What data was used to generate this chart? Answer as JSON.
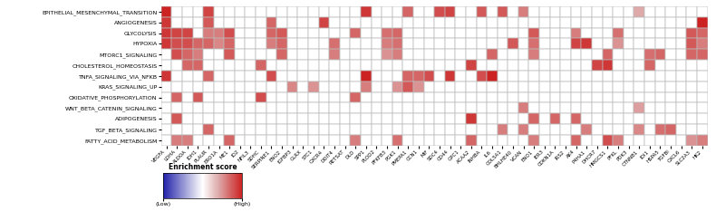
{
  "pathways": [
    "EPITHELIAL_MESENCHYMAL_TRANSITION",
    "ANGIOGENESIS",
    "GLYCOLYSIS",
    "HYPOXIA",
    "MTORC1_SIGNALING",
    "CHOLESTEROL_HOMEOSTASIS",
    "TNFA_SIGNALING_VIA_NFKB",
    "KRAS_SIGNALING_UP",
    "OXIDATIVE_PHOSPHORYLATION",
    "WNT_BETA_CATENIN_SIGNALING",
    "ADIPOGENESIS",
    "TGF_BETA_SIGNALING",
    "FATTY_ACID_METABOLISM"
  ],
  "genes": [
    "VEGFA",
    "LDHA",
    "ALDOA",
    "IDH1",
    "PLAUR",
    "ERO1A",
    "ME1",
    "ID2",
    "NFIL3",
    "SDHC",
    "SERPINE1",
    "ENO2",
    "IGFBP3",
    "GLRX",
    "STC1",
    "CXCR4",
    "DDIT4",
    "RETSAT",
    "DLD",
    "SPP1",
    "PLOD2",
    "PFKFB3",
    "PGK1",
    "PMEPA1",
    "CCN1",
    "MIF",
    "SDC4",
    "CD44",
    "GPC1",
    "ACAA2",
    "INHBA",
    "IL6",
    "COL5A1",
    "BHLHE40",
    "VCAN",
    "ENO1",
    "IER3",
    "CDKN1A",
    "IRS2",
    "AK4",
    "P4HA1",
    "DHCR7",
    "HMGCS1",
    "PFKL",
    "PDK3",
    "CTNNB1",
    "IDI1",
    "HSPA5",
    "TGFBI",
    "CXCL6",
    "SLC2A3",
    "HK2"
  ],
  "matrix": [
    [
      1.0,
      0.0,
      0.0,
      0.0,
      0.85,
      0.0,
      0.0,
      0.0,
      0.0,
      0.0,
      0.0,
      0.0,
      0.0,
      0.0,
      0.0,
      0.0,
      0.0,
      0.0,
      0.0,
      0.9,
      0.0,
      0.0,
      0.0,
      0.7,
      0.0,
      0.0,
      0.8,
      0.85,
      0.0,
      0.0,
      0.75,
      0.0,
      0.75,
      0.0,
      0.6,
      0.0,
      0.0,
      0.0,
      0.0,
      0.0,
      0.0,
      0.0,
      0.0,
      0.0,
      0.0,
      0.4,
      0.0,
      0.0,
      0.0,
      0.0,
      0.0,
      0.0
    ],
    [
      0.9,
      0.0,
      0.0,
      0.0,
      0.75,
      0.0,
      0.0,
      0.0,
      0.0,
      0.0,
      0.7,
      0.0,
      0.0,
      0.0,
      0.0,
      0.85,
      0.0,
      0.0,
      0.0,
      0.0,
      0.0,
      0.0,
      0.0,
      0.0,
      0.0,
      0.0,
      0.0,
      0.0,
      0.0,
      0.0,
      0.0,
      0.0,
      0.0,
      0.0,
      0.0,
      0.0,
      0.0,
      0.0,
      0.0,
      0.0,
      0.0,
      0.0,
      0.0,
      0.0,
      0.0,
      0.0,
      0.0,
      0.0,
      0.0,
      0.0,
      0.0,
      1.0
    ],
    [
      0.9,
      0.85,
      0.85,
      0.0,
      0.6,
      0.6,
      0.8,
      0.0,
      0.0,
      0.0,
      0.7,
      0.75,
      0.0,
      0.0,
      0.0,
      0.0,
      0.0,
      0.0,
      0.7,
      0.0,
      0.0,
      0.65,
      0.7,
      0.0,
      0.0,
      0.0,
      0.0,
      0.0,
      0.0,
      0.0,
      0.0,
      0.0,
      0.0,
      0.0,
      0.0,
      0.75,
      0.0,
      0.0,
      0.0,
      0.6,
      0.0,
      0.0,
      0.0,
      0.65,
      0.0,
      0.0,
      0.0,
      0.0,
      0.0,
      0.0,
      0.75,
      0.7
    ],
    [
      0.9,
      0.8,
      0.8,
      0.7,
      0.7,
      0.55,
      0.7,
      0.0,
      0.0,
      0.0,
      0.6,
      0.7,
      0.0,
      0.0,
      0.0,
      0.0,
      0.65,
      0.0,
      0.0,
      0.0,
      0.0,
      0.6,
      0.65,
      0.0,
      0.0,
      0.0,
      0.0,
      0.0,
      0.0,
      0.0,
      0.0,
      0.0,
      0.0,
      0.75,
      0.0,
      0.65,
      0.0,
      0.0,
      0.0,
      0.85,
      0.9,
      0.0,
      0.0,
      0.5,
      0.0,
      0.0,
      0.0,
      0.0,
      0.0,
      0.0,
      0.75,
      0.6
    ],
    [
      0.0,
      0.8,
      0.7,
      0.6,
      0.0,
      0.0,
      0.75,
      0.0,
      0.0,
      0.0,
      0.0,
      0.7,
      0.0,
      0.0,
      0.0,
      0.0,
      0.6,
      0.0,
      0.0,
      0.0,
      0.0,
      0.5,
      0.6,
      0.0,
      0.0,
      0.0,
      0.0,
      0.0,
      0.0,
      0.0,
      0.0,
      0.7,
      0.0,
      0.0,
      0.0,
      0.6,
      0.0,
      0.0,
      0.0,
      0.0,
      0.0,
      0.0,
      0.7,
      0.0,
      0.0,
      0.0,
      0.65,
      0.7,
      0.0,
      0.0,
      0.7,
      0.7
    ],
    [
      0.0,
      0.0,
      0.7,
      0.7,
      0.0,
      0.0,
      0.0,
      0.0,
      0.0,
      0.7,
      0.0,
      0.0,
      0.0,
      0.0,
      0.0,
      0.0,
      0.0,
      0.0,
      0.0,
      0.0,
      0.0,
      0.0,
      0.0,
      0.0,
      0.0,
      0.0,
      0.0,
      0.0,
      0.0,
      0.85,
      0.0,
      0.0,
      0.0,
      0.0,
      0.0,
      0.0,
      0.0,
      0.0,
      0.0,
      0.0,
      0.0,
      0.85,
      0.9,
      0.0,
      0.0,
      0.0,
      0.7,
      0.0,
      0.0,
      0.0,
      0.0,
      0.0
    ],
    [
      0.9,
      0.0,
      0.0,
      0.0,
      0.7,
      0.0,
      0.0,
      0.0,
      0.0,
      0.0,
      0.8,
      0.0,
      0.0,
      0.0,
      0.0,
      0.0,
      0.0,
      0.0,
      0.0,
      1.0,
      0.0,
      0.0,
      0.0,
      0.7,
      0.7,
      0.8,
      0.0,
      0.9,
      0.0,
      0.0,
      0.8,
      1.0,
      0.0,
      0.0,
      0.0,
      0.0,
      0.0,
      0.0,
      0.0,
      0.0,
      0.0,
      0.0,
      0.0,
      0.0,
      0.0,
      0.0,
      0.0,
      0.0,
      0.0,
      0.0,
      0.0,
      0.0
    ],
    [
      0.0,
      0.0,
      0.0,
      0.0,
      0.0,
      0.0,
      0.0,
      0.0,
      0.0,
      0.0,
      0.0,
      0.0,
      0.55,
      0.0,
      0.5,
      0.0,
      0.0,
      0.0,
      0.0,
      0.6,
      0.0,
      0.0,
      0.5,
      0.75,
      0.5,
      0.0,
      0.0,
      0.0,
      0.0,
      0.0,
      0.0,
      0.0,
      0.0,
      0.0,
      0.0,
      0.0,
      0.0,
      0.0,
      0.0,
      0.0,
      0.0,
      0.0,
      0.0,
      0.0,
      0.0,
      0.0,
      0.0,
      0.0,
      0.0,
      0.0,
      0.0,
      0.0
    ],
    [
      0.0,
      0.7,
      0.0,
      0.75,
      0.0,
      0.0,
      0.0,
      0.0,
      0.0,
      0.8,
      0.0,
      0.0,
      0.0,
      0.0,
      0.0,
      0.0,
      0.0,
      0.0,
      0.7,
      0.0,
      0.0,
      0.0,
      0.0,
      0.0,
      0.0,
      0.0,
      0.0,
      0.0,
      0.0,
      0.0,
      0.0,
      0.0,
      0.0,
      0.0,
      0.0,
      0.0,
      0.0,
      0.0,
      0.0,
      0.0,
      0.0,
      0.0,
      0.0,
      0.0,
      0.0,
      0.0,
      0.0,
      0.0,
      0.0,
      0.0,
      0.0,
      0.0
    ],
    [
      0.0,
      0.0,
      0.0,
      0.0,
      0.0,
      0.0,
      0.0,
      0.0,
      0.0,
      0.0,
      0.0,
      0.0,
      0.0,
      0.0,
      0.0,
      0.0,
      0.0,
      0.0,
      0.0,
      0.0,
      0.0,
      0.0,
      0.0,
      0.0,
      0.0,
      0.0,
      0.0,
      0.0,
      0.0,
      0.0,
      0.0,
      0.0,
      0.0,
      0.0,
      0.6,
      0.0,
      0.0,
      0.0,
      0.0,
      0.0,
      0.0,
      0.0,
      0.0,
      0.0,
      0.0,
      0.45,
      0.0,
      0.0,
      0.0,
      0.0,
      0.0,
      0.0
    ],
    [
      0.0,
      0.75,
      0.0,
      0.0,
      0.0,
      0.0,
      0.0,
      0.0,
      0.0,
      0.0,
      0.0,
      0.0,
      0.0,
      0.0,
      0.0,
      0.0,
      0.0,
      0.0,
      0.0,
      0.0,
      0.0,
      0.0,
      0.0,
      0.0,
      0.0,
      0.0,
      0.0,
      0.0,
      0.0,
      0.9,
      0.0,
      0.0,
      0.0,
      0.0,
      0.0,
      0.7,
      0.0,
      0.7,
      0.0,
      0.7,
      0.0,
      0.0,
      0.0,
      0.0,
      0.0,
      0.0,
      0.0,
      0.0,
      0.0,
      0.0,
      0.0,
      0.0
    ],
    [
      0.0,
      0.0,
      0.0,
      0.0,
      0.7,
      0.0,
      0.0,
      0.0,
      0.0,
      0.0,
      0.0,
      0.0,
      0.0,
      0.0,
      0.0,
      0.0,
      0.0,
      0.0,
      0.0,
      0.0,
      0.0,
      0.0,
      0.0,
      0.0,
      0.0,
      0.0,
      0.0,
      0.0,
      0.0,
      0.0,
      0.0,
      0.0,
      0.6,
      0.0,
      0.6,
      0.0,
      0.0,
      0.0,
      0.0,
      0.0,
      0.6,
      0.0,
      0.0,
      0.0,
      0.0,
      0.55,
      0.0,
      0.65,
      0.7,
      0.0,
      0.0,
      0.0
    ],
    [
      0.0,
      0.6,
      0.6,
      0.0,
      0.0,
      0.0,
      0.7,
      0.0,
      0.0,
      0.0,
      0.0,
      0.0,
      0.0,
      0.0,
      0.0,
      0.0,
      0.0,
      0.0,
      0.6,
      0.0,
      0.0,
      0.0,
      0.65,
      0.0,
      0.0,
      0.0,
      0.0,
      0.0,
      0.0,
      0.7,
      0.0,
      0.0,
      0.0,
      0.0,
      0.0,
      0.6,
      0.0,
      0.0,
      0.0,
      0.7,
      0.0,
      0.0,
      0.8,
      0.6,
      0.0,
      0.0,
      0.0,
      0.0,
      0.0,
      0.0,
      0.5,
      0.6
    ]
  ],
  "colorbar_label": "Enrichment score",
  "colorbar_low": "(Low)",
  "colorbar_high": "(High)",
  "cmap_colors": [
    [
      0.0,
      "#2222aa"
    ],
    [
      0.3,
      "#aaaadd"
    ],
    [
      0.5,
      "#ffffff"
    ],
    [
      0.7,
      "#ddaaaa"
    ],
    [
      1.0,
      "#cc2222"
    ]
  ],
  "grid_color": "#bbbbbb",
  "grid_lw": 0.3,
  "cell_edge_color": "#bbbbbb",
  "cell_edge_lw": 0.3,
  "ylabel_fontsize": 4.5,
  "xlabel_fontsize": 4.0,
  "cb_fontsize": 4.5,
  "cb_title_fontsize": 5.5
}
